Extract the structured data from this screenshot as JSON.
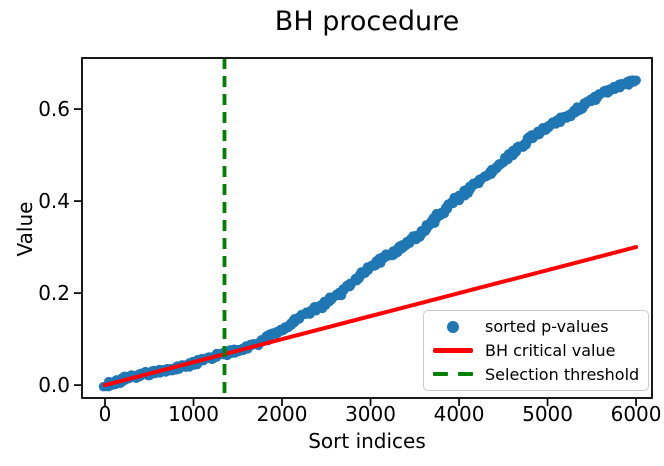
{
  "title": "BH procedure",
  "axes": {
    "xlabel": "Sort indices",
    "ylabel": "Value"
  },
  "legend": {
    "position": "lower right",
    "items": [
      {
        "label": "sorted p-values",
        "marker": "dot",
        "color": "#1f77b4"
      },
      {
        "label": "BH critical value",
        "marker": "line",
        "color": "#ff0000"
      },
      {
        "label": "Selection threshold",
        "marker": "dashed-line",
        "color": "#008000"
      }
    ]
  },
  "colors": {
    "scatter": "#1f77b4",
    "bh_line": "#ff0000",
    "threshold_line": "#008000",
    "spine": "#000000",
    "tick_text": "#000000",
    "legend_border": "#cccccc",
    "background": "#ffffff"
  },
  "chart_data": {
    "type": "scatter",
    "title": "BH procedure",
    "xlabel": "Sort indices",
    "ylabel": "Value",
    "xlim": [
      -260,
      6180
    ],
    "ylim": [
      -0.028,
      0.711
    ],
    "x_ticks": [
      0,
      1000,
      2000,
      3000,
      4000,
      5000,
      6000
    ],
    "y_ticks": [
      0.0,
      0.2,
      0.4,
      0.6
    ],
    "grid": false,
    "legend_position": "lower right",
    "series": [
      {
        "name": "sorted p-values",
        "type": "scatter",
        "color": "#1f77b4",
        "x": [
          0,
          300,
          600,
          900,
          1200,
          1500,
          1800,
          2100,
          2400,
          2700,
          3000,
          3300,
          3600,
          3900,
          4200,
          4500,
          4800,
          5100,
          5400,
          5700,
          6000
        ],
        "y": [
          0.0,
          0.014,
          0.029,
          0.044,
          0.059,
          0.077,
          0.101,
          0.131,
          0.166,
          0.207,
          0.252,
          0.296,
          0.338,
          0.392,
          0.442,
          0.488,
          0.532,
          0.572,
          0.608,
          0.639,
          0.664
        ]
      },
      {
        "name": "BH critical value",
        "type": "line",
        "color": "#ff0000",
        "x": [
          0,
          6000
        ],
        "y": [
          0.0,
          0.3
        ]
      },
      {
        "name": "Selection threshold",
        "type": "vline",
        "color": "#008000",
        "x": 1350,
        "linestyle": "dashed"
      }
    ]
  }
}
